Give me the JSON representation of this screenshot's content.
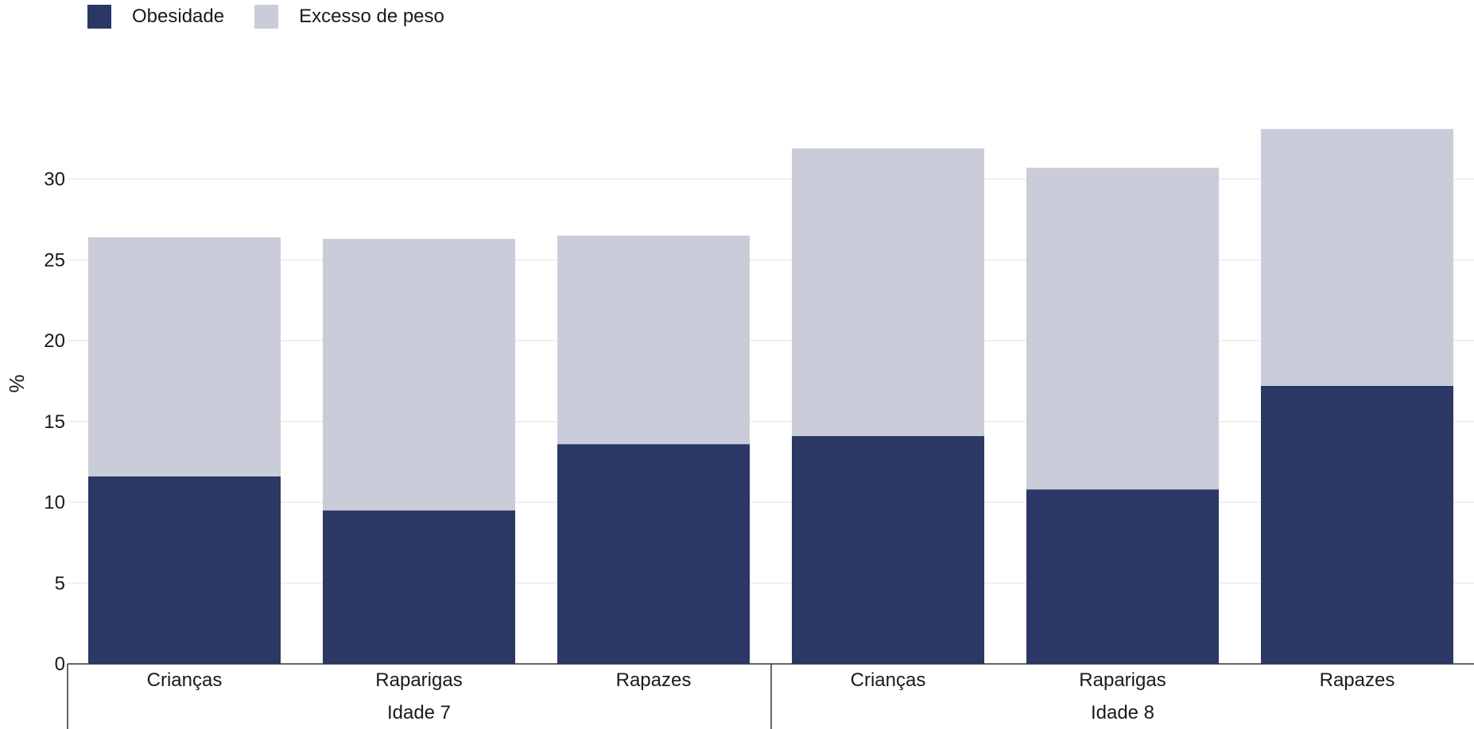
{
  "legend": {
    "items": [
      {
        "label": "Obesidade",
        "color": "#2b3765"
      },
      {
        "label": "Excesso de peso",
        "color": "#cacdd9"
      }
    ]
  },
  "chart_data": {
    "type": "bar",
    "stacked": true,
    "ylabel": "%",
    "ylim": [
      0,
      33
    ],
    "yticks": [
      0,
      5,
      10,
      15,
      20,
      25,
      30
    ],
    "grid": true,
    "legend_position": "top-left",
    "groups": [
      {
        "label": "Idade 7",
        "categories": [
          "Crianças",
          "Raparigas",
          "Rapazes"
        ]
      },
      {
        "label": "Idade 8",
        "categories": [
          "Crianças",
          "Raparigas",
          "Rapazes"
        ]
      }
    ],
    "series": [
      {
        "name": "Obesidade",
        "color": "#2b3765",
        "values": [
          11.6,
          9.5,
          13.6,
          14.1,
          10.8,
          17.2
        ]
      },
      {
        "name": "Excesso de peso",
        "color": "#cacdd9",
        "values": [
          14.8,
          16.8,
          12.9,
          17.8,
          19.9,
          15.9
        ]
      }
    ]
  }
}
